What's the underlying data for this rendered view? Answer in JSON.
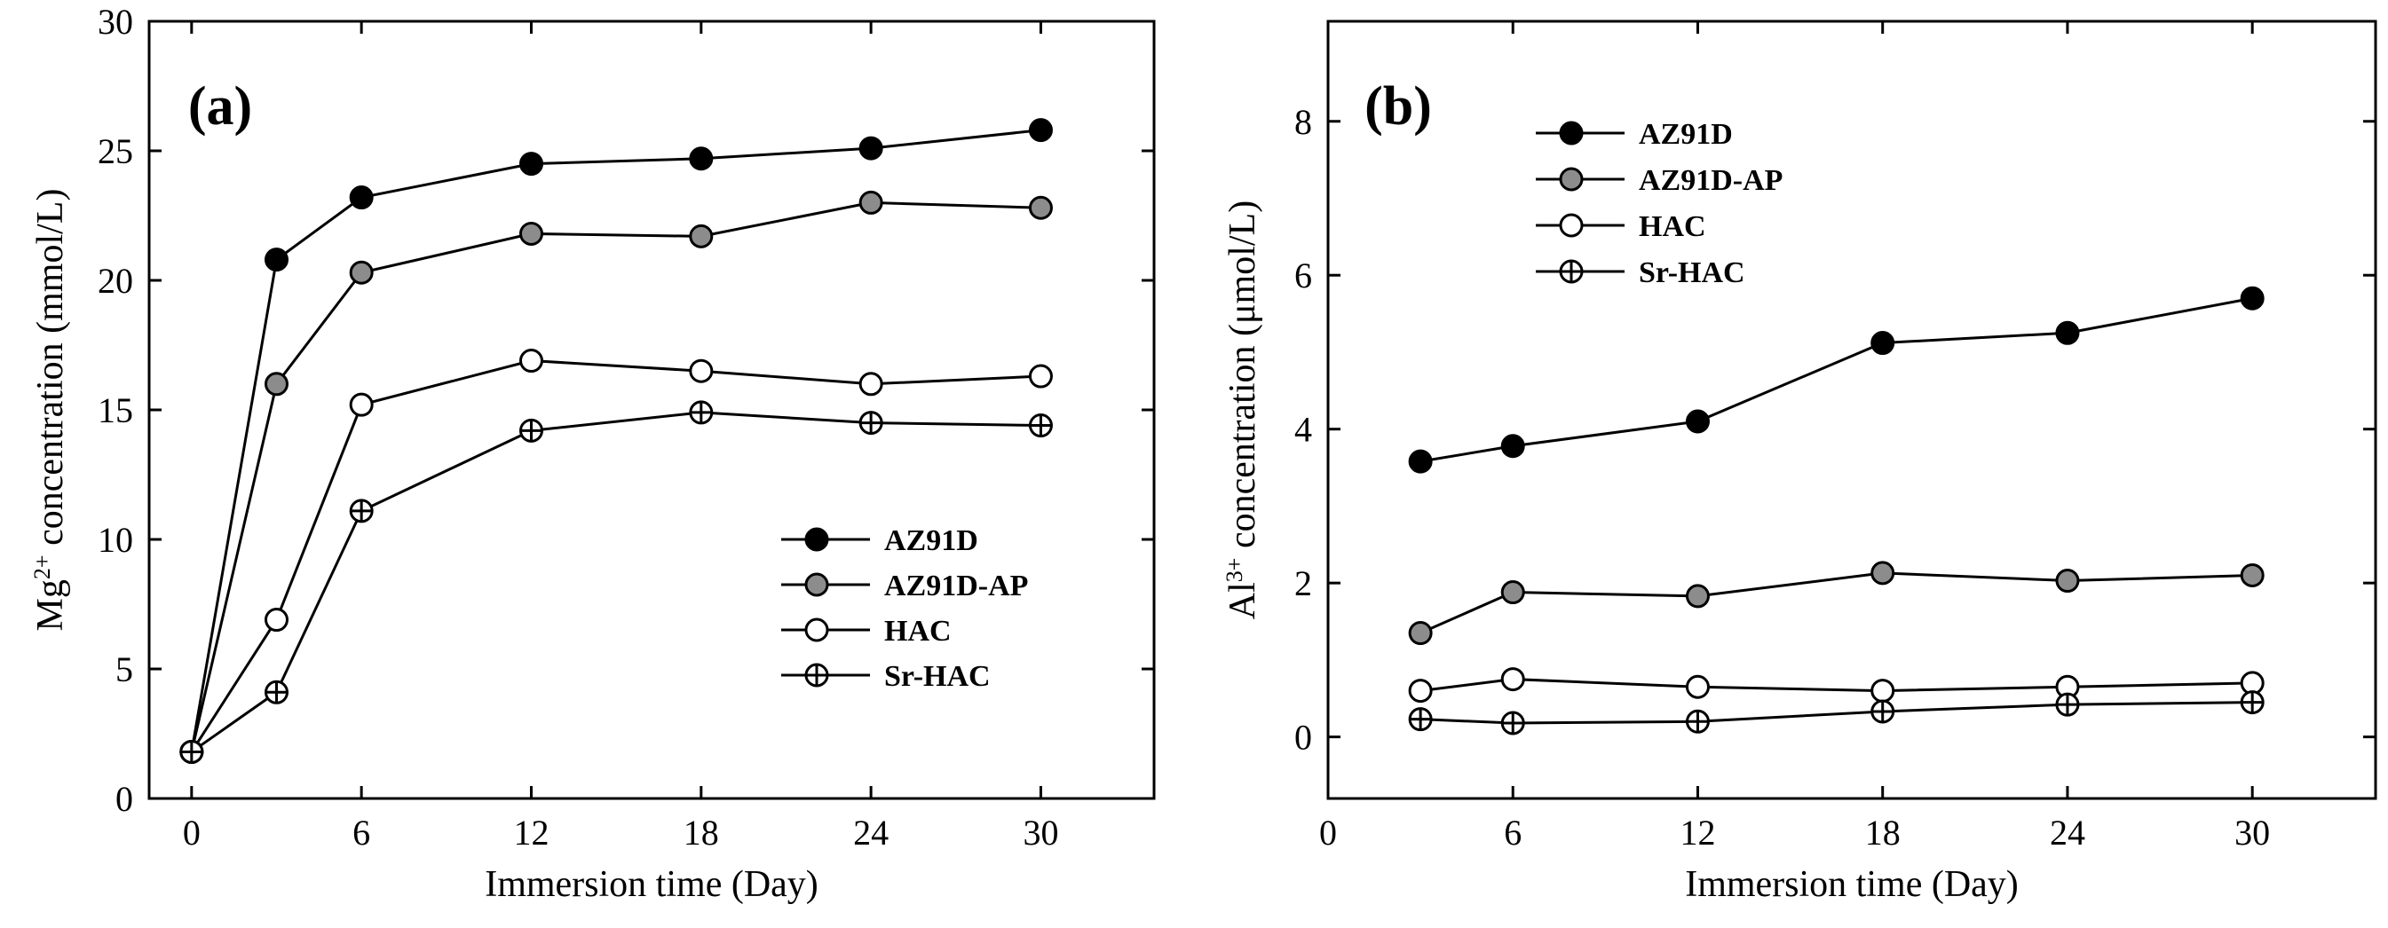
{
  "chart_data": [
    {
      "panel": "(a)",
      "type": "line",
      "xlabel": "Immersion time (Day)",
      "ylabel": {
        "prefix": "Mg",
        "sup": "2+",
        "suffix": " concentration (mmol/L)"
      },
      "xlim": [
        -1.5,
        34
      ],
      "ylim": [
        0,
        30
      ],
      "xticks": [
        "0",
        "6",
        "12",
        "18",
        "24",
        "30"
      ],
      "yticks": [
        "0",
        "5",
        "10",
        "15",
        "20",
        "25",
        "30"
      ],
      "legend_position": "lower-right",
      "series": [
        {
          "name": "AZ91D",
          "marker": "filled-black",
          "x": [
            0,
            3,
            6,
            12,
            18,
            24,
            30
          ],
          "y": [
            1.8,
            20.8,
            23.2,
            24.5,
            24.7,
            25.1,
            25.8
          ]
        },
        {
          "name": "AZ91D-AP",
          "marker": "filled-gray",
          "x": [
            0,
            3,
            6,
            12,
            18,
            24,
            30
          ],
          "y": [
            1.8,
            16.0,
            20.3,
            21.8,
            21.7,
            23.0,
            22.8
          ]
        },
        {
          "name": "HAC",
          "marker": "open",
          "x": [
            0,
            3,
            6,
            12,
            18,
            24,
            30
          ],
          "y": [
            1.8,
            6.9,
            15.2,
            16.9,
            16.5,
            16.0,
            16.3
          ]
        },
        {
          "name": "Sr-HAC",
          "marker": "crossed",
          "x": [
            0,
            3,
            6,
            12,
            18,
            24,
            30
          ],
          "y": [
            1.8,
            4.1,
            11.1,
            14.2,
            14.9,
            14.5,
            14.4
          ]
        }
      ]
    },
    {
      "panel": "(b)",
      "type": "line",
      "xlabel": "Immersion time (Day)",
      "ylabel": {
        "prefix": "Al",
        "sup": "3+",
        "suffix": " concentration (μmol/L)"
      },
      "xlim": [
        0,
        34
      ],
      "ylim": [
        -0.8,
        9.3
      ],
      "xticks": [
        "0",
        "6",
        "12",
        "18",
        "24",
        "30"
      ],
      "yticks": [
        "0",
        "2",
        "4",
        "6",
        "8"
      ],
      "legend_position": "top-left",
      "series": [
        {
          "name": "AZ91D",
          "marker": "filled-black",
          "x": [
            3,
            6,
            12,
            18,
            24,
            30
          ],
          "y": [
            3.58,
            3.78,
            4.1,
            5.12,
            5.25,
            5.7
          ]
        },
        {
          "name": "AZ91D-AP",
          "marker": "filled-gray",
          "x": [
            3,
            6,
            12,
            18,
            24,
            30
          ],
          "y": [
            1.35,
            1.88,
            1.83,
            2.13,
            2.03,
            2.1
          ]
        },
        {
          "name": "HAC",
          "marker": "open",
          "x": [
            3,
            6,
            12,
            18,
            24,
            30
          ],
          "y": [
            0.6,
            0.75,
            0.65,
            0.6,
            0.65,
            0.7
          ]
        },
        {
          "name": "Sr-HAC",
          "marker": "crossed",
          "x": [
            3,
            6,
            12,
            18,
            24,
            30
          ],
          "y": [
            0.23,
            0.18,
            0.2,
            0.33,
            0.42,
            0.45
          ]
        }
      ]
    }
  ]
}
